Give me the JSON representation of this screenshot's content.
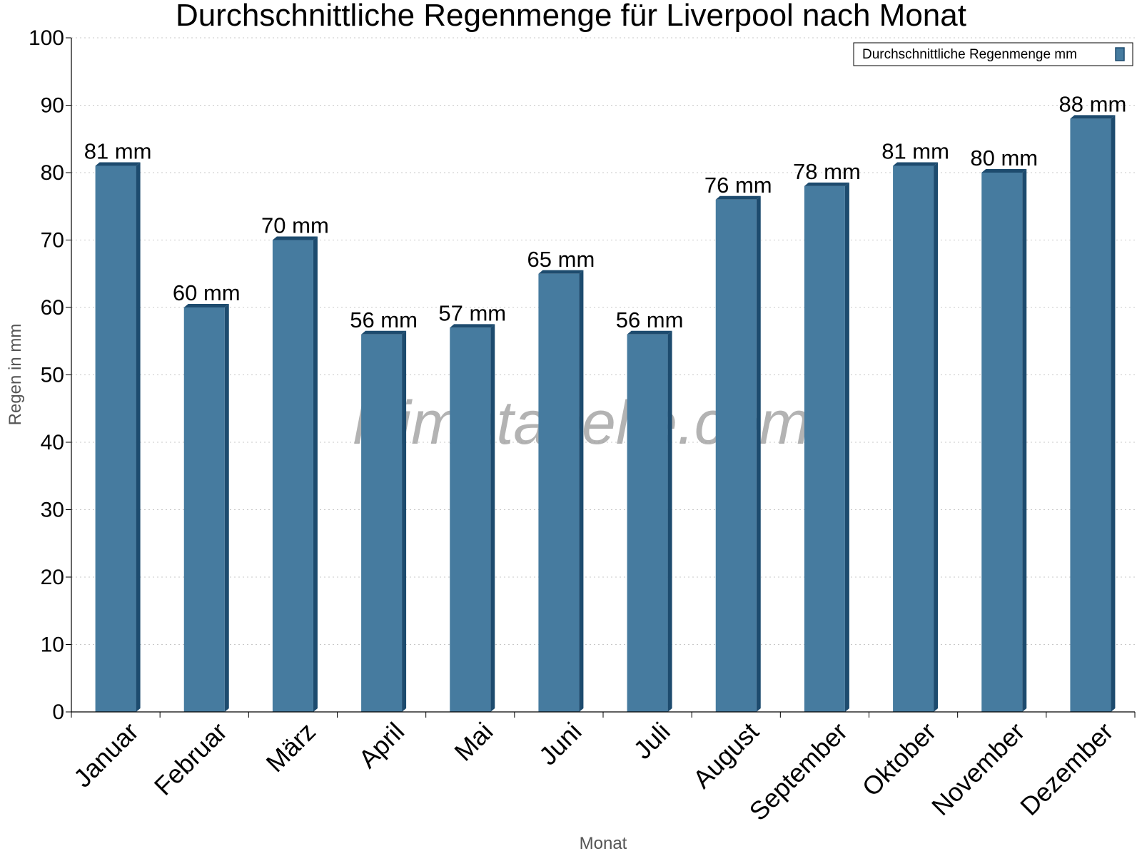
{
  "chart_data": {
    "type": "bar",
    "title": "Durchschnittliche Regenmenge für Liverpool nach Monat",
    "xlabel": "Monat",
    "ylabel": "Regen in mm",
    "ylim": [
      0,
      100
    ],
    "yticks": [
      0,
      10,
      20,
      30,
      40,
      50,
      60,
      70,
      80,
      90,
      100
    ],
    "grid": true,
    "legend_position": "top-right",
    "categories": [
      "Januar",
      "Februar",
      "März",
      "April",
      "Mai",
      "Juni",
      "Juli",
      "August",
      "September",
      "Oktober",
      "November",
      "Dezember"
    ],
    "series": [
      {
        "name": "Durchschnittliche Regenmenge mm",
        "values": [
          81,
          60,
          70,
          56,
          57,
          65,
          56,
          76,
          78,
          81,
          80,
          88
        ],
        "labels": [
          "81 mm",
          "60 mm",
          "70 mm",
          "56 mm",
          "57 mm",
          "65 mm",
          "56 mm",
          "76 mm",
          "78 mm",
          "81 mm",
          "80 mm",
          "88 mm"
        ],
        "color": "#467b9f",
        "side_color": "#1d4b6e"
      }
    ]
  },
  "watermark": "klimatabelle.com"
}
